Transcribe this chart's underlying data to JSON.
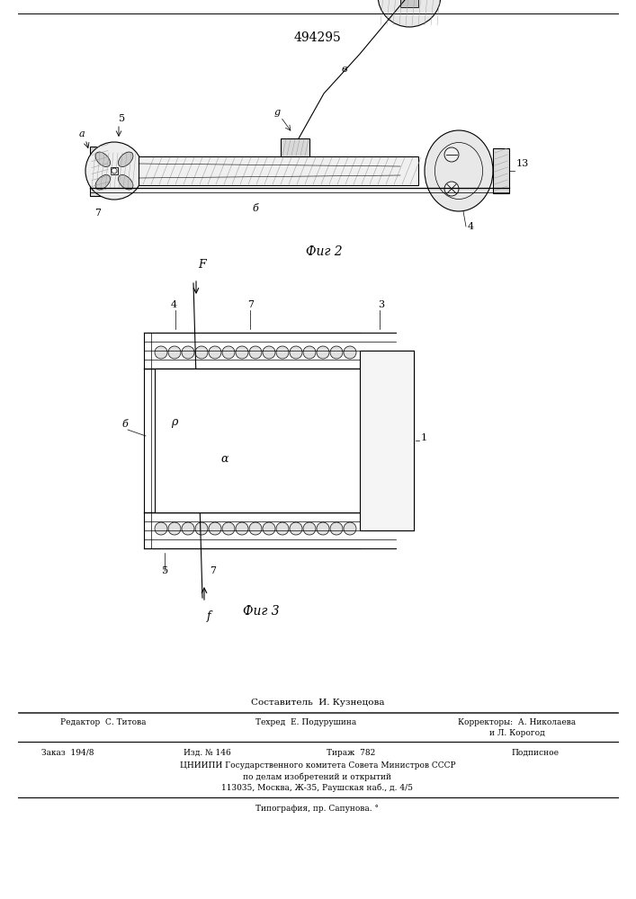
{
  "patent_number": "494295",
  "fig2_caption": "Фиг 2",
  "fig3_caption": "Фиг 3",
  "footer_composer": "Составитель  И. Кузнецова",
  "footer_editor": "Редактор  С. Титова",
  "footer_tech": "Техред  Е. Подурушина",
  "footer_correctors": "Корректоры:  А. Николаева",
  "footer_correctors2": "и Л. Корогод",
  "footer_order": "Заказ  194/8",
  "footer_issue": "Изд. № 146",
  "footer_print": "Тираж  782",
  "footer_sub": "Подписное",
  "footer_org": "ЦНИИПИ Государственного комитета Совета Министров СССР",
  "footer_org2": "по делам изобретений и открытий",
  "footer_addr": "113035, Москва, Ж-35, Раушская наб., д. 4/5",
  "footer_print2": "Типография, пр. Сапунова. °",
  "bg_color": "#ffffff",
  "line_color": "#000000",
  "text_color": "#000000"
}
